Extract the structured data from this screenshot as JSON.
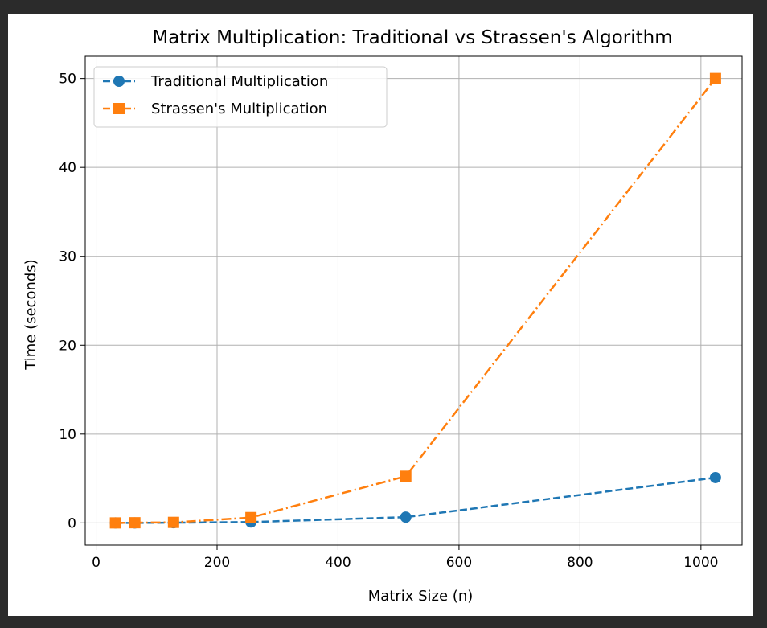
{
  "chart_data": {
    "type": "line",
    "title": "Matrix Multiplication: Traditional vs Strassen's Algorithm",
    "xlabel": "Matrix Size (n)",
    "ylabel": "Time (seconds)",
    "xlim": [
      -18,
      1068
    ],
    "ylim": [
      -2.5,
      52.5
    ],
    "xticks": [
      0,
      200,
      400,
      600,
      800,
      1000
    ],
    "yticks": [
      0,
      10,
      20,
      30,
      40,
      50
    ],
    "grid": true,
    "legend_position": "top-left",
    "x": [
      32,
      64,
      128,
      256,
      512,
      1024
    ],
    "series": [
      {
        "name": "Traditional Multiplication",
        "values": [
          0.0,
          0.0,
          0.02,
          0.1,
          0.65,
          5.1
        ],
        "color": "#1f77b4",
        "marker": "circle",
        "linestyle": "dashed"
      },
      {
        "name": "Strassen's Multiplication",
        "values": [
          0.0,
          0.02,
          0.06,
          0.6,
          5.25,
          50.0
        ],
        "color": "#ff7f0e",
        "marker": "square",
        "linestyle": "dash-dot"
      }
    ]
  }
}
